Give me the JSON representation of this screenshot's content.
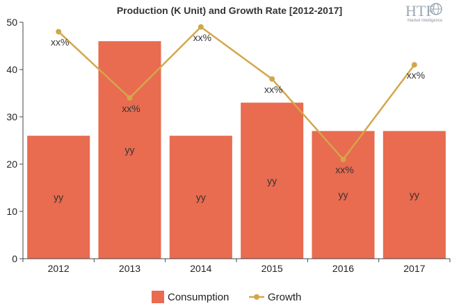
{
  "chart_data": {
    "type": "bar",
    "title": "Production (K Unit) and Growth Rate [2012-2017]",
    "categories": [
      "2012",
      "2013",
      "2014",
      "2015",
      "2016",
      "2017"
    ],
    "series": [
      {
        "name": "Consumption",
        "type": "bar",
        "color": "#e96b50",
        "values": [
          26,
          46,
          26,
          33,
          27,
          27
        ],
        "label": "yy"
      },
      {
        "name": "Growth",
        "type": "line",
        "color": "#d2a74a",
        "values": [
          48,
          34,
          49,
          38,
          21,
          41
        ],
        "label": "xx%"
      }
    ],
    "ylim": [
      0,
      50
    ],
    "yticks": [
      0,
      10,
      20,
      30,
      40,
      50
    ],
    "xlabel": "",
    "ylabel": "",
    "legend": "bottom",
    "grid": false
  },
  "logo": {
    "text": "HTF",
    "subtext": "Market Intelligence",
    "icon": "globe-icon"
  }
}
